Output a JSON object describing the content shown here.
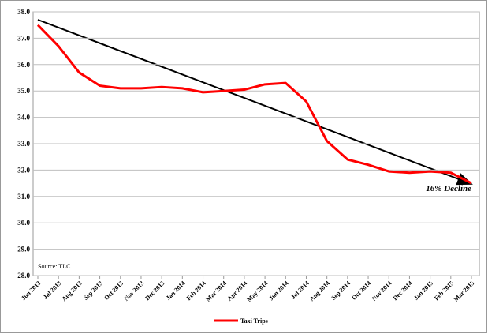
{
  "chart_data": {
    "type": "line",
    "categories": [
      "Jun 2013",
      "Jul 2013",
      "Aug 2013",
      "Sep 2013",
      "Oct 2013",
      "Nov 2013",
      "Dec 2013",
      "Jan 2014",
      "Feb 2014",
      "Mar 2014",
      "Apr 2014",
      "May 2014",
      "Jun 2014",
      "Jul 2014",
      "Aug 2014",
      "Sep 2014",
      "Oct 2014",
      "Nov 2014",
      "Dec 2014",
      "Jan 2015",
      "Feb 2015",
      "Mar 2015"
    ],
    "series": [
      {
        "name": "Taxi Trips",
        "color": "#ff0000",
        "values": [
          37.5,
          36.7,
          35.7,
          35.2,
          35.1,
          35.1,
          35.15,
          35.1,
          34.95,
          35.0,
          35.05,
          35.25,
          35.3,
          34.6,
          33.1,
          32.4,
          32.2,
          31.95,
          31.9,
          31.95,
          31.9,
          31.5
        ]
      }
    ],
    "ylim": [
      28.0,
      38.0
    ],
    "yticks": [
      {
        "value": 28,
        "label": "28.0"
      },
      {
        "value": 29,
        "label": "29.0"
      },
      {
        "value": 30,
        "label": "30.0"
      },
      {
        "value": 31,
        "label": "31.0"
      },
      {
        "value": 32,
        "label": "32.0"
      },
      {
        "value": 33,
        "label": "33.0"
      },
      {
        "value": 34,
        "label": "34.0"
      },
      {
        "value": 35,
        "label": "35.0"
      },
      {
        "value": 36,
        "label": "36.0"
      },
      {
        "value": 37,
        "label": "37.0"
      },
      {
        "value": 38,
        "label": "38.0"
      }
    ],
    "grid": true,
    "annotation": "16% Decline",
    "source": "Source: TLC.",
    "legend": "bottom"
  }
}
